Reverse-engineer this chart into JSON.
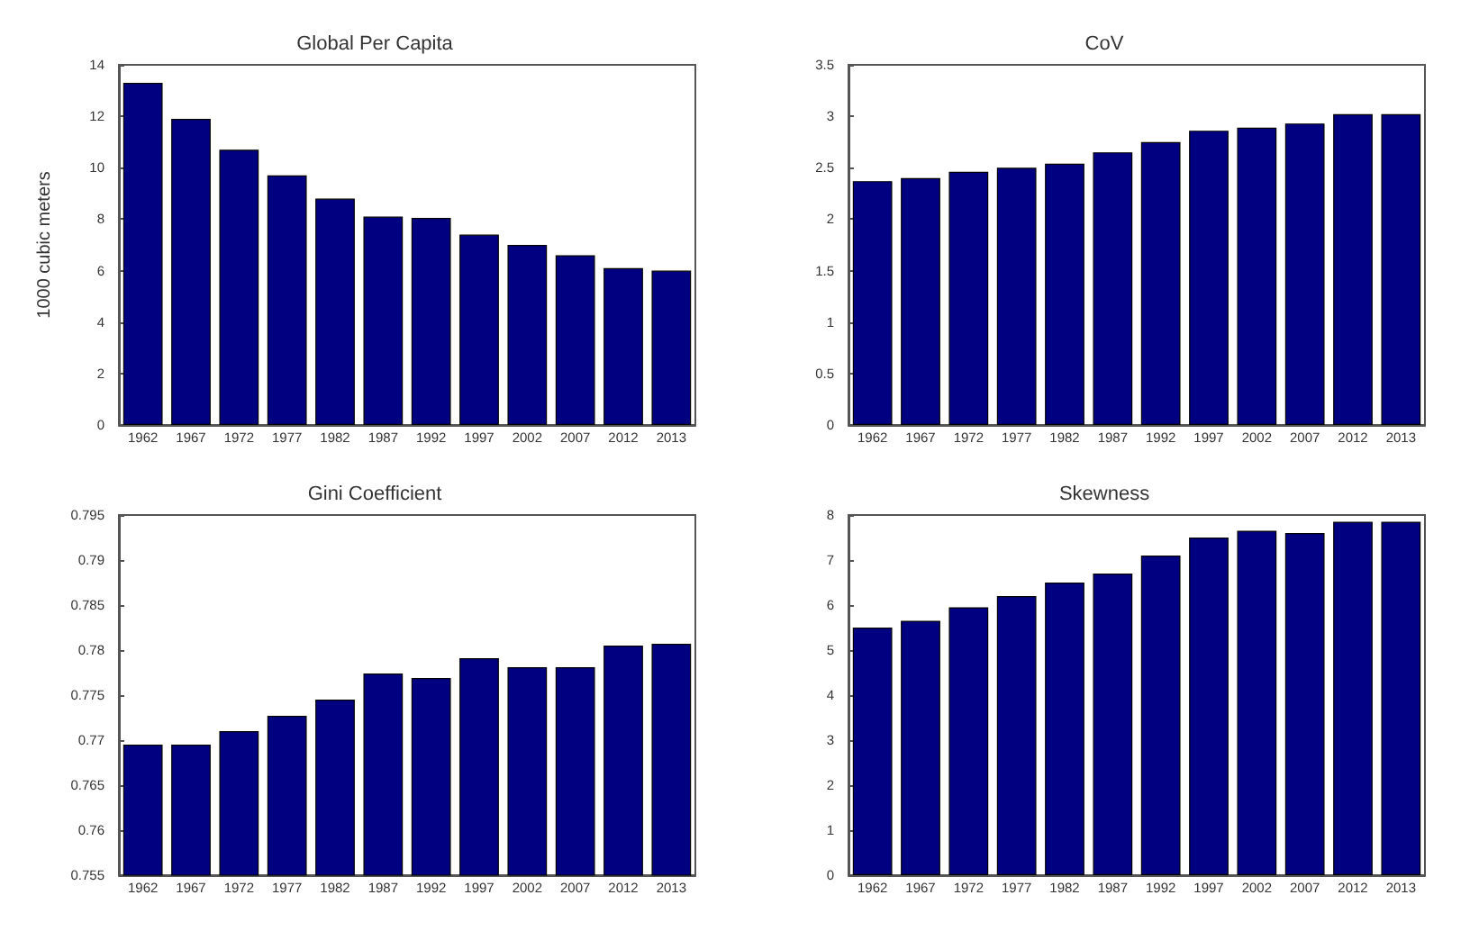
{
  "chart_data": [
    {
      "type": "bar",
      "title": "Global Per Capita",
      "ylabel": "1000 cubic meters",
      "categories": [
        "1962",
        "1967",
        "1972",
        "1977",
        "1982",
        "1987",
        "1992",
        "1997",
        "2002",
        "2007",
        "2012",
        "2013"
      ],
      "values": [
        13.3,
        11.9,
        10.7,
        9.7,
        8.8,
        8.1,
        8.05,
        7.4,
        7.0,
        6.6,
        6.1,
        6.0
      ],
      "color": "#000080",
      "ylim": [
        0,
        14
      ],
      "yticks": [
        0,
        2,
        4,
        6,
        8,
        10,
        12,
        14
      ]
    },
    {
      "type": "bar",
      "title": "CoV",
      "categories": [
        "1962",
        "1967",
        "1972",
        "1977",
        "1982",
        "1987",
        "1992",
        "1997",
        "2002",
        "2007",
        "2012",
        "2013"
      ],
      "values": [
        2.37,
        2.4,
        2.46,
        2.5,
        2.54,
        2.65,
        2.75,
        2.86,
        2.89,
        2.93,
        3.02,
        3.02
      ],
      "color": "#000080",
      "ylim": [
        0,
        3.5
      ],
      "yticks": [
        0,
        0.5,
        1,
        1.5,
        2,
        2.5,
        3,
        3.5
      ]
    },
    {
      "type": "bar",
      "title": "Gini Coefficient",
      "categories": [
        "1962",
        "1967",
        "1972",
        "1977",
        "1982",
        "1987",
        "1992",
        "1997",
        "2002",
        "2007",
        "2012",
        "2013"
      ],
      "values": [
        0.7695,
        0.7695,
        0.771,
        0.7727,
        0.7745,
        0.7774,
        0.7769,
        0.7791,
        0.7781,
        0.7781,
        0.7805,
        0.7807
      ],
      "color": "#000080",
      "ylim": [
        0.755,
        0.795
      ],
      "yticks": [
        0.755,
        0.76,
        0.765,
        0.77,
        0.775,
        0.78,
        0.785,
        0.79,
        0.795
      ]
    },
    {
      "type": "bar",
      "title": "Skewness",
      "categories": [
        "1962",
        "1967",
        "1972",
        "1977",
        "1982",
        "1987",
        "1992",
        "1997",
        "2002",
        "2007",
        "2012",
        "2013"
      ],
      "values": [
        5.5,
        5.65,
        5.95,
        6.2,
        6.5,
        6.7,
        7.1,
        7.5,
        7.65,
        7.6,
        7.85,
        7.85
      ],
      "color": "#000080",
      "ylim": [
        0,
        8
      ],
      "yticks": [
        0,
        1,
        2,
        3,
        4,
        5,
        6,
        7,
        8
      ]
    }
  ]
}
